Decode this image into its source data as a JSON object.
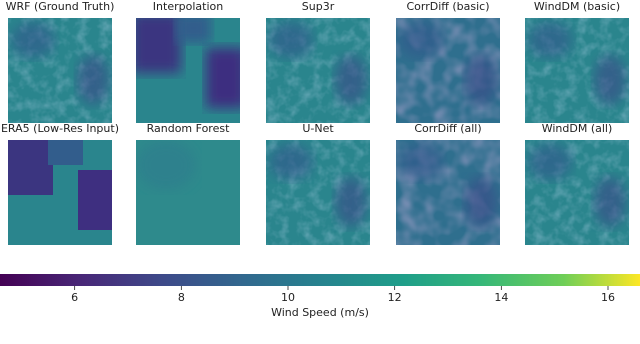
{
  "panels": [
    {
      "title": "WRF (Ground Truth)"
    },
    {
      "title": "Interpolation"
    },
    {
      "title": "Sup3r"
    },
    {
      "title": "CorrDiff (basic)"
    },
    {
      "title": "WindDM (basic)"
    },
    {
      "title": "ERA5 (Low-Res Input)"
    },
    {
      "title": "Random Forest"
    },
    {
      "title": "U-Net"
    },
    {
      "title": "CorrDiff (all)"
    },
    {
      "title": "WindDM (all)"
    }
  ],
  "colorbar": {
    "label": "Wind Speed (m/s)",
    "lim": [
      4.6,
      16.6
    ],
    "ticks": [
      6,
      8,
      10,
      12,
      14,
      16
    ]
  }
}
